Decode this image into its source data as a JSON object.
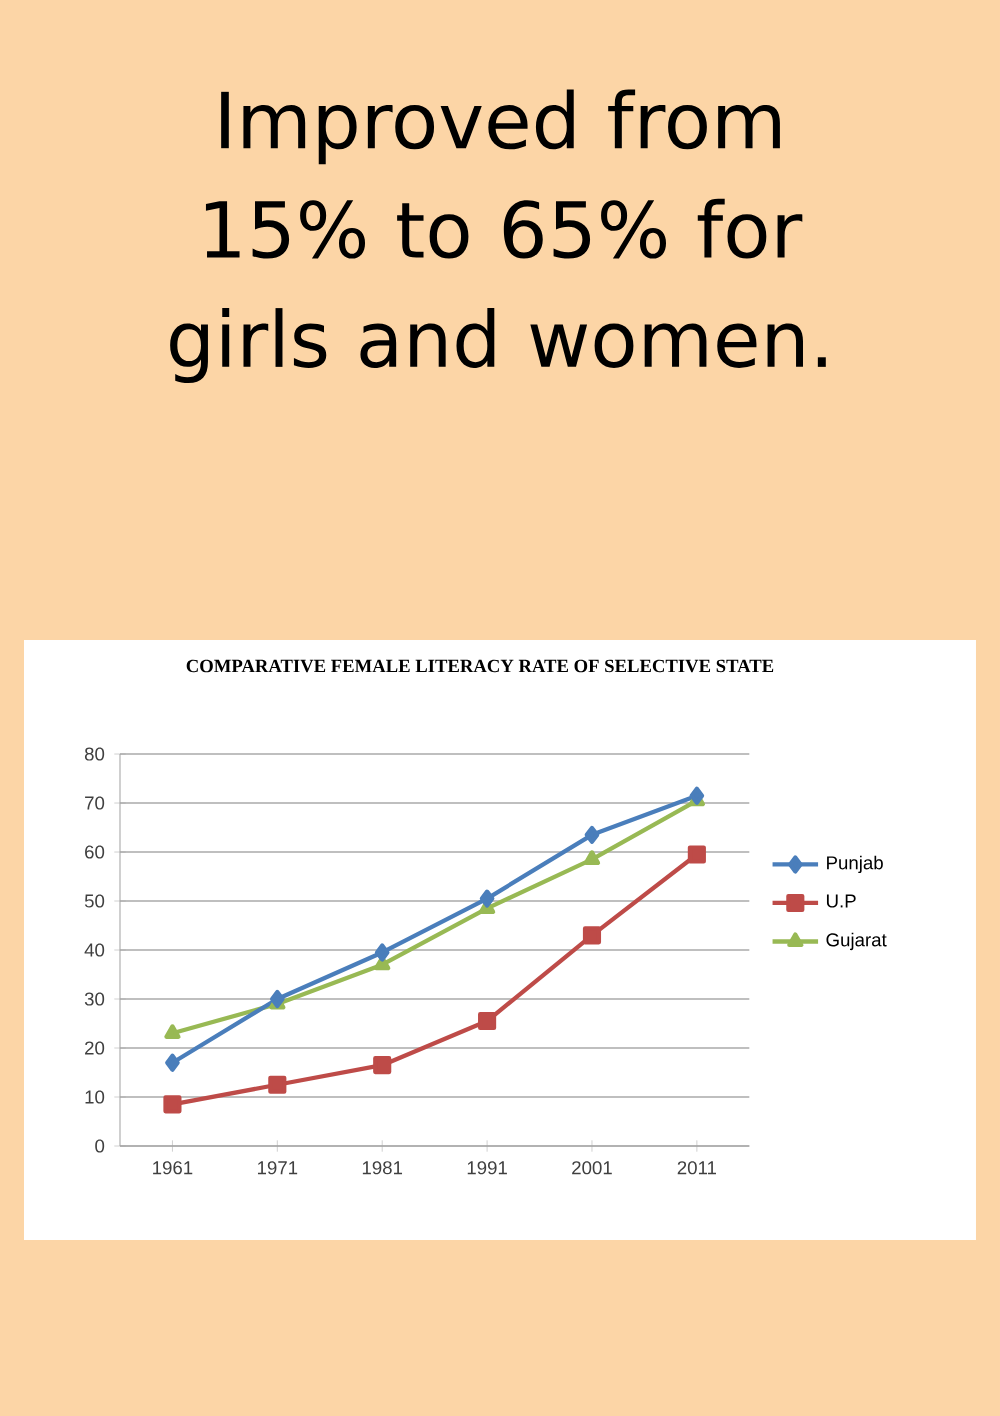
{
  "chart_data": {
    "type": "line",
    "title": "Improved from 15% to 65% for girls and women.",
    "subtitle": "COMPARATIVE FEMALE LITERACY RATE OF SELECTIVE STATE",
    "categories": [
      "1961",
      "1971",
      "1981",
      "1991",
      "2001",
      "2011"
    ],
    "series": [
      {
        "name": "Punjab",
        "color": "#4a7ebb",
        "marker": "diamond",
        "values": [
          17,
          30,
          39.5,
          50.5,
          63.5,
          71.5
        ]
      },
      {
        "name": "U.P",
        "color": "#be4b48",
        "marker": "square",
        "values": [
          8.5,
          12.5,
          16.5,
          25.5,
          43,
          59.5
        ]
      },
      {
        "name": "Gujarat",
        "color": "#98b954",
        "marker": "triangle",
        "values": [
          23,
          29,
          37,
          48.5,
          58.5,
          70.5
        ]
      }
    ],
    "ylim": [
      0,
      80
    ],
    "yticks": [
      0,
      10,
      20,
      30,
      40,
      50,
      60,
      70,
      80
    ],
    "grid": "y",
    "legend": "right",
    "line_style": "solid"
  }
}
